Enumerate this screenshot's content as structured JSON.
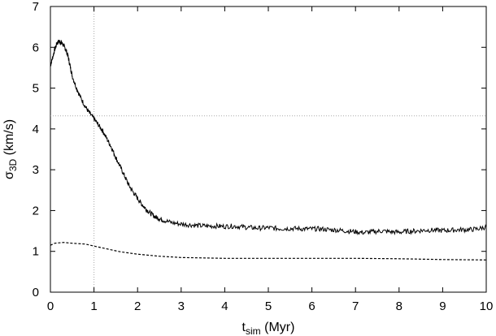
{
  "chart_data": {
    "type": "line",
    "title": "",
    "xlabel": {
      "main": "t",
      "sub": "sim",
      "rest": " (Myr)"
    },
    "ylabel": {
      "main": "σ",
      "sub": "3D",
      "rest": " (km/s)"
    },
    "xlim": [
      0,
      10
    ],
    "ylim": [
      0,
      7
    ],
    "xticks": [
      "0",
      "1",
      "2",
      "3",
      "4",
      "5",
      "6",
      "7",
      "8",
      "9",
      "10"
    ],
    "yticks": [
      "0",
      "1",
      "2",
      "3",
      "4",
      "5",
      "6",
      "7"
    ],
    "grid": false,
    "legend": "none",
    "reference_lines": [
      {
        "orientation": "vertical",
        "x": 1.0,
        "style": "dotted",
        "color": "#aaaaaa"
      },
      {
        "orientation": "horizontal",
        "y": 4.32,
        "style": "dotted",
        "color": "#aaaaaa"
      }
    ],
    "series": [
      {
        "style": "solid",
        "color": "#000000",
        "noisy": true,
        "x": [
          0,
          0.05,
          0.1,
          0.15,
          0.2,
          0.25,
          0.3,
          0.35,
          0.4,
          0.45,
          0.5,
          0.6,
          0.7,
          0.8,
          0.9,
          1.0,
          1.1,
          1.2,
          1.3,
          1.4,
          1.5,
          1.6,
          1.7,
          1.8,
          1.9,
          2.0,
          2.1,
          2.2,
          2.3,
          2.4,
          2.5,
          2.6,
          2.8,
          3.0,
          3.2,
          3.4,
          3.6,
          3.8,
          4.0,
          4.2,
          4.4,
          4.6,
          4.8,
          5.0,
          5.2,
          5.4,
          5.6,
          5.8,
          6.0,
          6.2,
          6.4,
          6.6,
          6.8,
          7.0,
          7.2,
          7.4,
          7.6,
          7.8,
          8.0,
          8.2,
          8.4,
          8.6,
          8.8,
          9.0,
          9.2,
          9.4,
          9.6,
          9.8,
          10.0
        ],
        "y": [
          5.55,
          5.75,
          5.95,
          6.1,
          6.15,
          6.12,
          6.05,
          5.95,
          5.8,
          5.55,
          5.3,
          5.0,
          4.75,
          4.55,
          4.38,
          4.25,
          4.1,
          3.95,
          3.75,
          3.55,
          3.3,
          3.08,
          2.85,
          2.62,
          2.45,
          2.3,
          2.15,
          2.03,
          1.93,
          1.85,
          1.8,
          1.76,
          1.7,
          1.67,
          1.65,
          1.63,
          1.62,
          1.62,
          1.61,
          1.62,
          1.6,
          1.58,
          1.57,
          1.58,
          1.56,
          1.56,
          1.56,
          1.55,
          1.55,
          1.55,
          1.53,
          1.52,
          1.5,
          1.48,
          1.46,
          1.48,
          1.5,
          1.48,
          1.47,
          1.49,
          1.5,
          1.52,
          1.52,
          1.51,
          1.52,
          1.53,
          1.53,
          1.55,
          1.6
        ]
      },
      {
        "style": "dashed",
        "color": "#000000",
        "noisy": false,
        "x": [
          0,
          0.1,
          0.3,
          0.5,
          0.8,
          1.0,
          1.3,
          1.6,
          2.0,
          2.5,
          3.0,
          3.5,
          4.0,
          5.0,
          6.0,
          7.0,
          8.0,
          9.0,
          10.0
        ],
        "y": [
          1.15,
          1.2,
          1.22,
          1.2,
          1.18,
          1.13,
          1.06,
          0.99,
          0.93,
          0.88,
          0.85,
          0.84,
          0.83,
          0.83,
          0.83,
          0.83,
          0.82,
          0.8,
          0.79
        ]
      }
    ]
  }
}
